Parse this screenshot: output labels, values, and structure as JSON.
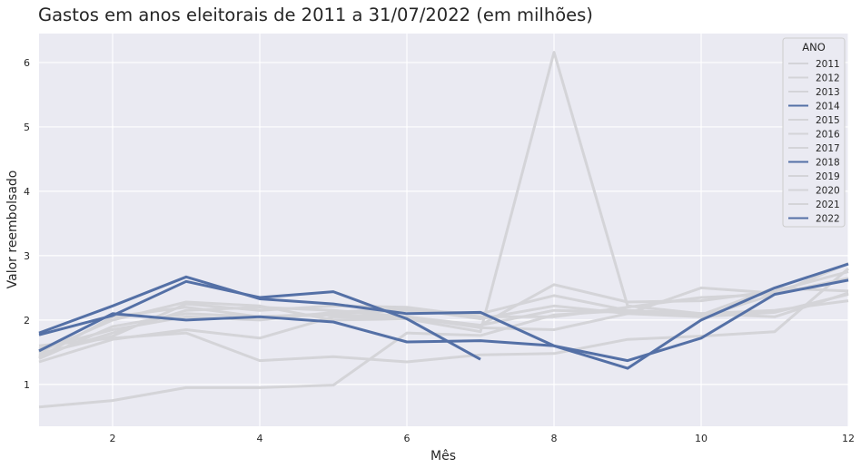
{
  "chart_data": {
    "type": "line",
    "title": "Gastos em anos eleitorais de 2011 a 31/07/2022 (em milhões)",
    "xlabel": "Mês",
    "ylabel": "Valor reembolsado",
    "xlim": [
      1,
      12
    ],
    "ylim": [
      0.35,
      6.45
    ],
    "xticks": [
      2,
      4,
      6,
      8,
      10,
      12
    ],
    "yticks": [
      1,
      2,
      3,
      4,
      5,
      6
    ],
    "grid": true,
    "legend": {
      "title": "ANO",
      "placement": "top-right"
    },
    "colors": {
      "highlight": "#5470a6",
      "muted": "#d4d4d8",
      "background": "#eaeaf2",
      "grid": "#ffffff"
    },
    "x": [
      1,
      2,
      3,
      4,
      5,
      6,
      7,
      8,
      9,
      10,
      11,
      12
    ],
    "series": [
      {
        "name": "2011",
        "highlight": false,
        "values": [
          0.65,
          0.75,
          0.95,
          0.95,
          0.99,
          1.8,
          1.76,
          2.08,
          2.15,
          2.08,
          2.5,
          2.45
        ]
      },
      {
        "name": "2012",
        "highlight": false,
        "values": [
          1.4,
          1.9,
          2.1,
          2.05,
          2.1,
          2.15,
          2.1,
          2.38,
          2.15,
          2.1,
          2.05,
          2.42
        ]
      },
      {
        "name": "2013",
        "highlight": false,
        "values": [
          1.35,
          1.7,
          1.85,
          1.72,
          2.05,
          2.02,
          1.92,
          2.15,
          2.12,
          2.05,
          2.4,
          2.88
        ]
      },
      {
        "name": "2014",
        "highlight": true,
        "values": [
          1.52,
          2.1,
          2.0,
          2.05,
          1.97,
          1.66,
          1.68,
          1.6,
          1.25,
          2.0,
          2.5,
          2.87
        ]
      },
      {
        "name": "2015",
        "highlight": false,
        "values": [
          1.45,
          1.8,
          2.15,
          2.2,
          2.15,
          2.05,
          1.92,
          2.55,
          2.28,
          2.3,
          2.45,
          2.75
        ]
      },
      {
        "name": "2016",
        "highlight": false,
        "values": [
          1.48,
          1.75,
          2.25,
          2.15,
          2.22,
          2.2,
          2.05,
          2.05,
          2.2,
          2.35,
          2.4,
          2.65
        ]
      },
      {
        "name": "2017",
        "highlight": false,
        "values": [
          1.55,
          1.85,
          2.05,
          2.0,
          2.12,
          2.18,
          2.02,
          2.22,
          2.1,
          2.5,
          2.42,
          2.62
        ]
      },
      {
        "name": "2018",
        "highlight": true,
        "values": [
          1.8,
          2.22,
          2.67,
          2.33,
          2.25,
          2.1,
          2.12,
          1.6,
          1.37,
          1.72,
          2.4,
          2.62
        ]
      },
      {
        "name": "2019",
        "highlight": false,
        "values": [
          1.6,
          1.72,
          1.8,
          1.37,
          1.43,
          1.35,
          1.46,
          1.48,
          1.7,
          1.75,
          1.82,
          2.8
        ]
      },
      {
        "name": "2020",
        "highlight": false,
        "values": [
          1.5,
          2.0,
          2.28,
          2.22,
          2.0,
          2.02,
          1.82,
          6.16,
          2.22,
          2.1,
          2.15,
          2.3
        ]
      },
      {
        "name": "2021",
        "highlight": false,
        "values": [
          1.42,
          2.05,
          2.2,
          2.05,
          2.08,
          2.05,
          1.88,
          1.85,
          2.1,
          2.05,
          2.12,
          2.4
        ]
      },
      {
        "name": "2022",
        "highlight": true,
        "values": [
          1.77,
          2.07,
          2.6,
          2.35,
          2.44,
          2.02,
          1.39,
          null,
          null,
          null,
          null,
          null
        ]
      }
    ]
  }
}
